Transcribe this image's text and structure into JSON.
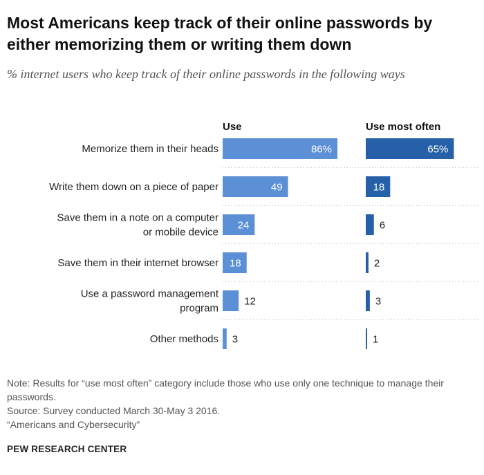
{
  "title": "Most Americans keep track of their online passwords by either memorizing them or writing them down",
  "subtitle": "% internet users who keep track of their online passwords in the following ways",
  "chart_data": {
    "type": "bar",
    "title": "Most Americans keep track of their online passwords by either memorizing them or writing them down",
    "subtitle": "% internet users who keep track of their online passwords in the following ways",
    "categories": [
      [
        "Memorize them in their heads"
      ],
      [
        "Write them down on a piece of paper"
      ],
      [
        "Save them in a note on a computer",
        "or mobile device"
      ],
      [
        "Save them in their internet browser"
      ],
      [
        "Use a password management",
        "program"
      ],
      [
        "Other methods"
      ]
    ],
    "series": [
      {
        "name": "Use",
        "values": [
          86,
          49,
          24,
          18,
          12,
          3
        ],
        "labels": [
          "86%",
          "49",
          "24",
          "18",
          "12",
          "3"
        ],
        "color": "#5b8fd6"
      },
      {
        "name": "Use most often",
        "values": [
          65,
          18,
          6,
          2,
          3,
          1
        ],
        "labels": [
          "65%",
          "18",
          "6",
          "2",
          "3",
          "1"
        ],
        "color": "#2660a8"
      }
    ],
    "ylim": [
      0,
      100
    ],
    "grid": false,
    "legend": "top"
  },
  "notes": [
    "Note: Results for “use most often” category include those who use only one technique to manage their passwords.",
    "Source: Survey conducted March 30-May 3 2016.",
    "“Americans and Cybersecurity”"
  ],
  "brand": "PEW RESEARCH CENTER"
}
